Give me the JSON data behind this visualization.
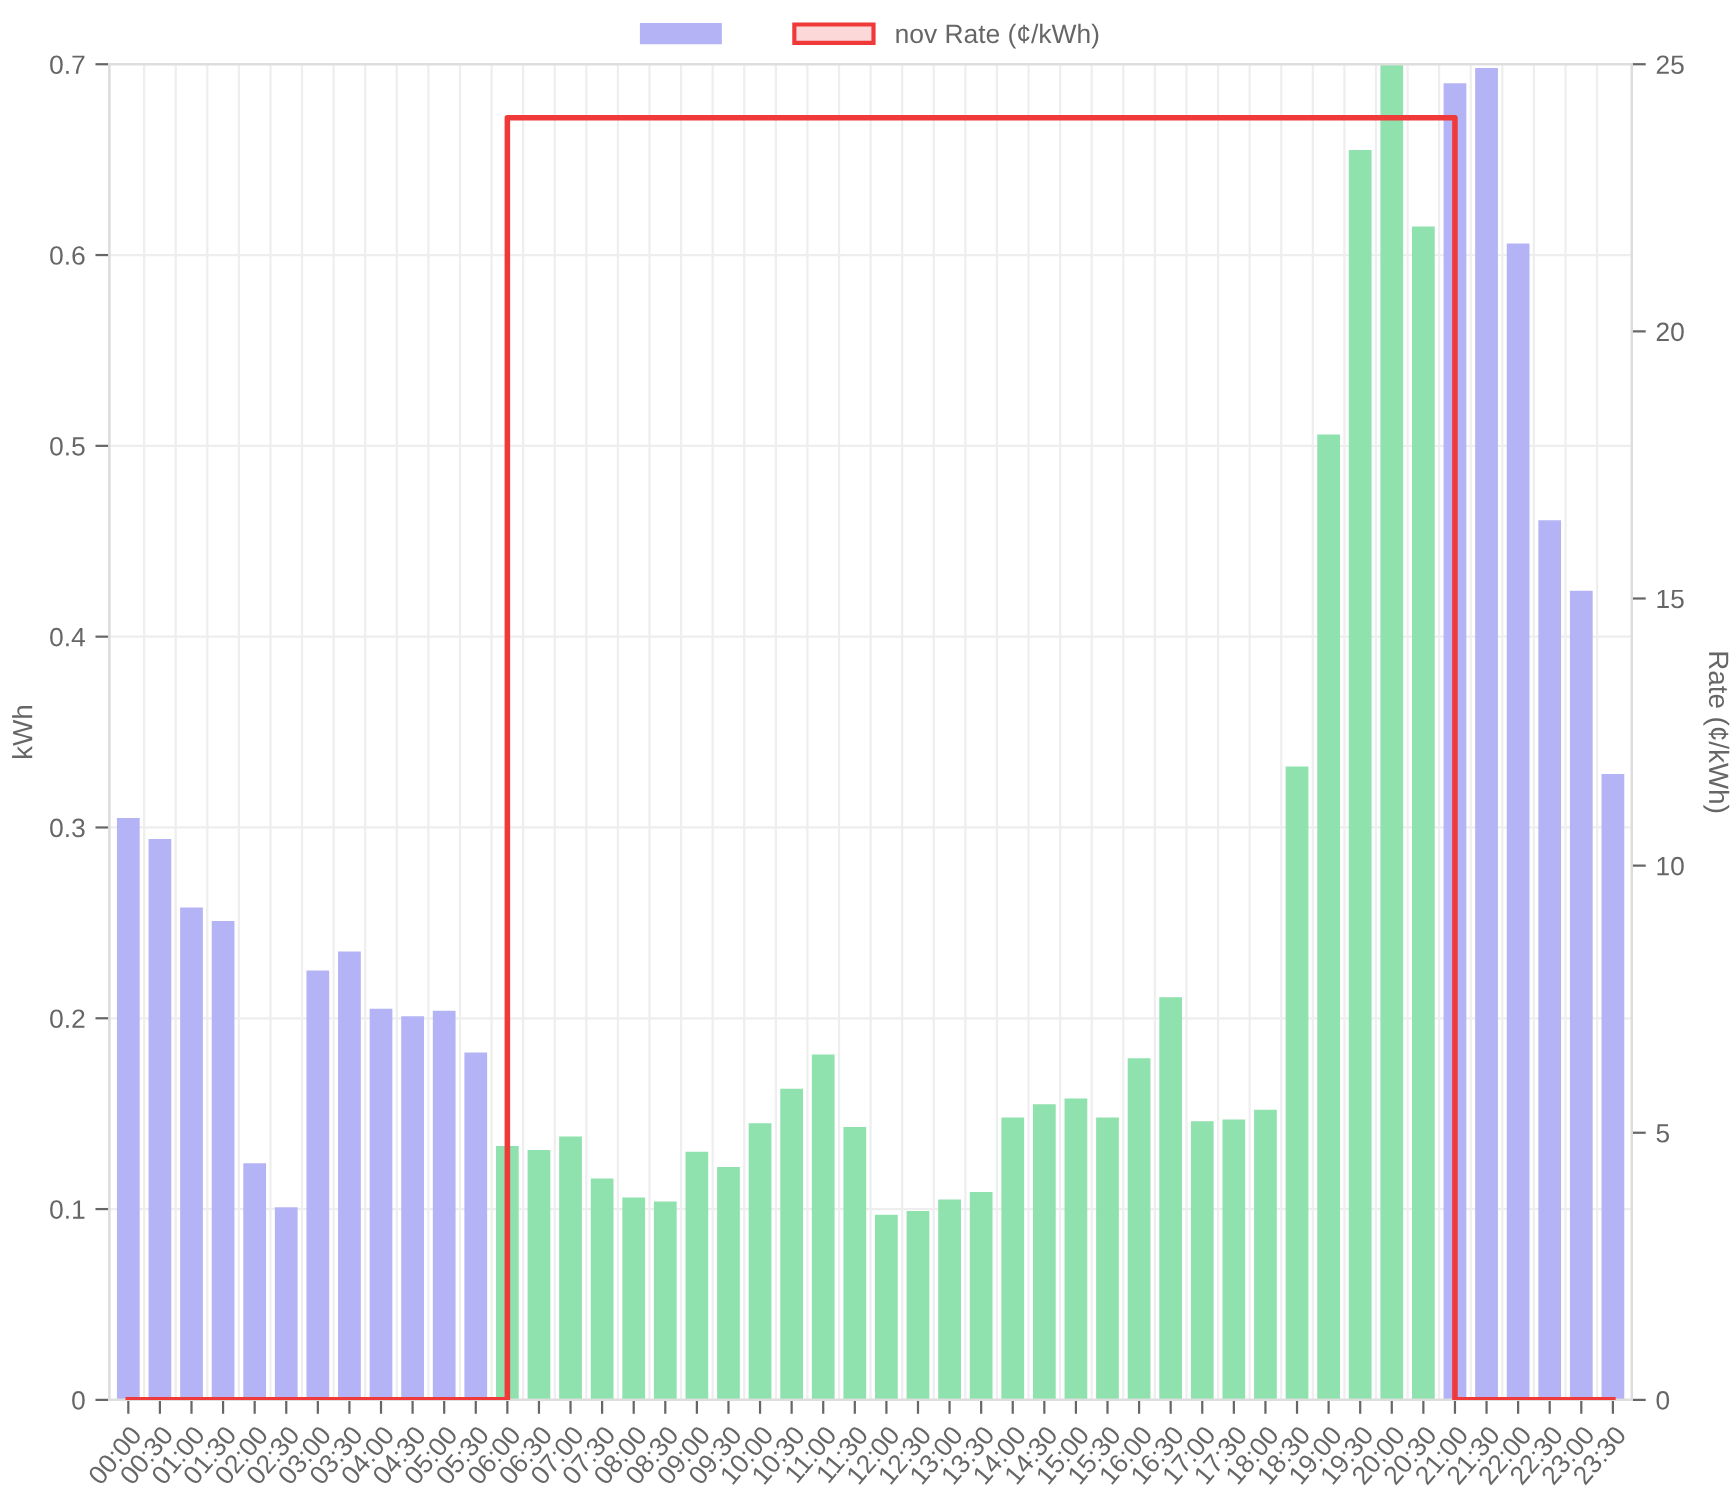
{
  "chart_data": {
    "type": "bar",
    "categories": [
      "00:00",
      "00:30",
      "01:00",
      "01:30",
      "02:00",
      "02:30",
      "03:00",
      "03:30",
      "04:00",
      "04:30",
      "05:00",
      "05:30",
      "06:00",
      "06:30",
      "07:00",
      "07:30",
      "08:00",
      "08:30",
      "09:00",
      "09:30",
      "10:00",
      "10:30",
      "11:00",
      "11:30",
      "12:00",
      "12:30",
      "13:00",
      "13:30",
      "14:00",
      "14:30",
      "15:00",
      "15:30",
      "16:00",
      "16:30",
      "17:00",
      "17:30",
      "18:00",
      "18:30",
      "19:00",
      "19:30",
      "20:00",
      "20:30",
      "21:00",
      "21:30",
      "22:00",
      "22:30",
      "23:00",
      "23:30"
    ],
    "series": [
      {
        "color": "#b3b3f5",
        "colors": [
          "#b3b3f5",
          "#b3b3f5",
          "#b3b3f5",
          "#b3b3f5",
          "#b3b3f5",
          "#b3b3f5",
          "#b3b3f5",
          "#b3b3f5",
          "#b3b3f5",
          "#b3b3f5",
          "#b3b3f5",
          "#b3b3f5",
          "#8fe1ad",
          "#8fe1ad",
          "#8fe1ad",
          "#8fe1ad",
          "#8fe1ad",
          "#8fe1ad",
          "#8fe1ad",
          "#8fe1ad",
          "#8fe1ad",
          "#8fe1ad",
          "#8fe1ad",
          "#8fe1ad",
          "#8fe1ad",
          "#8fe1ad",
          "#8fe1ad",
          "#8fe1ad",
          "#8fe1ad",
          "#8fe1ad",
          "#8fe1ad",
          "#8fe1ad",
          "#8fe1ad",
          "#8fe1ad",
          "#8fe1ad",
          "#8fe1ad",
          "#8fe1ad",
          "#8fe1ad",
          "#8fe1ad",
          "#8fe1ad",
          "#8fe1ad",
          "#8fe1ad",
          "#b3b3f5",
          "#b3b3f5",
          "#b3b3f5",
          "#b3b3f5",
          "#b3b3f5",
          "#b3b3f5"
        ],
        "values": [
          0.305,
          0.294,
          0.258,
          0.251,
          0.124,
          0.101,
          0.225,
          0.235,
          0.205,
          0.201,
          0.204,
          0.182,
          0.133,
          0.131,
          0.138,
          0.116,
          0.106,
          0.104,
          0.13,
          0.122,
          0.145,
          0.163,
          0.181,
          0.143,
          0.097,
          0.099,
          0.105,
          0.109,
          0.148,
          0.155,
          0.158,
          0.148,
          0.179,
          0.211,
          0.146,
          0.147,
          0.152,
          0.332,
          0.506,
          0.655,
          0.7,
          0.615,
          0.69,
          0.698,
          0.606,
          0.461,
          0.424,
          0.328
        ]
      },
      {
        "type": "step",
        "name": "nov Rate (¢/kWh)",
        "color": "#f03a3a",
        "axis": "y2",
        "values": [
          0,
          0,
          0,
          0,
          0,
          0,
          0,
          0,
          0,
          0,
          0,
          0,
          24,
          24,
          24,
          24,
          24,
          24,
          24,
          24,
          24,
          24,
          24,
          24,
          24,
          24,
          24,
          24,
          24,
          24,
          24,
          24,
          24,
          24,
          24,
          24,
          24,
          24,
          24,
          24,
          24,
          24,
          0,
          0,
          0,
          0,
          0,
          0
        ]
      }
    ],
    "ylabel": "kWh",
    "y2label": "Rate (¢/kWh)",
    "ylim": [
      0,
      0.7
    ],
    "yticks": [
      0,
      0.1,
      0.2,
      0.3,
      0.4,
      0.5,
      0.6,
      0.7
    ],
    "y2lim": [
      0,
      25
    ],
    "y2ticks": [
      0,
      5,
      10,
      15,
      20,
      25
    ],
    "grid": true,
    "legend": "top"
  }
}
